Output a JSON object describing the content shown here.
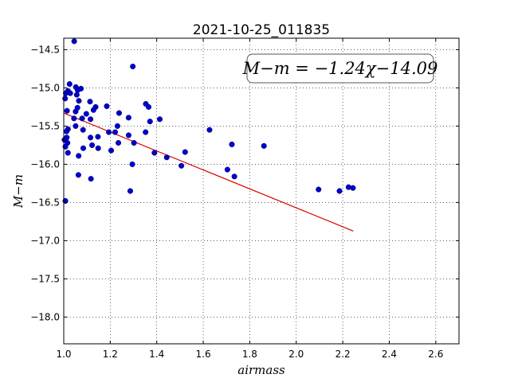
{
  "chart_data": {
    "type": "scatter",
    "title": "2021-10-25_011835",
    "xlabel": "airmass",
    "ylabel": "M−m",
    "xlim": [
      1.0,
      2.7
    ],
    "ylim": [
      -18.35,
      -14.35
    ],
    "x_ticks": [
      "1.0",
      "1.2",
      "1.4",
      "1.6",
      "1.8",
      "2.0",
      "2.2",
      "2.4",
      "2.6"
    ],
    "y_ticks": [
      "-14.5",
      "-15.0",
      "-15.5",
      "-16.0",
      "-16.5",
      "-17.0",
      "-17.5",
      "-18.0"
    ],
    "x_tick_values": [
      1.0,
      1.2,
      1.4,
      1.6,
      1.8,
      2.0,
      2.2,
      2.4,
      2.6
    ],
    "y_tick_values": [
      -14.5,
      -15.0,
      -15.5,
      -16.0,
      -16.5,
      -17.0,
      -17.5,
      -18.0
    ],
    "grid": true,
    "annotation": "M−m = −1.24χ−14.09",
    "point_color": "#0000cc",
    "fit_color": "#dd0000",
    "fit": {
      "slope": -1.24,
      "intercept": -14.09,
      "x_range": [
        1.0,
        2.245
      ]
    },
    "points": [
      [
        1.045,
        -14.39
      ],
      [
        1.297,
        -14.72
      ],
      [
        1.018,
        -15.04
      ],
      [
        1.009,
        -15.07
      ],
      [
        1.025,
        -14.95
      ],
      [
        1.028,
        -15.07
      ],
      [
        1.052,
        -14.99
      ],
      [
        1.06,
        -15.03
      ],
      [
        1.074,
        -15.01
      ],
      [
        1.056,
        -15.09
      ],
      [
        1.006,
        -15.14
      ],
      [
        1.065,
        -15.17
      ],
      [
        1.113,
        -15.18
      ],
      [
        1.059,
        -15.26
      ],
      [
        1.051,
        -15.31
      ],
      [
        1.137,
        -15.25
      ],
      [
        1.128,
        -15.29
      ],
      [
        1.014,
        -15.3
      ],
      [
        1.185,
        -15.24
      ],
      [
        1.353,
        -15.21
      ],
      [
        1.365,
        -15.25
      ],
      [
        1.097,
        -15.34
      ],
      [
        1.238,
        -15.33
      ],
      [
        1.079,
        -15.4
      ],
      [
        1.115,
        -15.41
      ],
      [
        1.044,
        -15.4
      ],
      [
        1.279,
        -15.39
      ],
      [
        1.413,
        -15.41
      ],
      [
        1.371,
        -15.44
      ],
      [
        1.231,
        -15.5
      ],
      [
        1.051,
        -15.5
      ],
      [
        1.018,
        -15.54
      ],
      [
        1.012,
        -15.57
      ],
      [
        1.083,
        -15.55
      ],
      [
        1.194,
        -15.58
      ],
      [
        1.221,
        -15.58
      ],
      [
        1.352,
        -15.58
      ],
      [
        1.627,
        -15.55
      ],
      [
        1.013,
        -15.65
      ],
      [
        1.003,
        -15.68
      ],
      [
        1.115,
        -15.65
      ],
      [
        1.147,
        -15.64
      ],
      [
        1.279,
        -15.62
      ],
      [
        1.016,
        -15.72
      ],
      [
        1.122,
        -15.75
      ],
      [
        1.235,
        -15.72
      ],
      [
        1.302,
        -15.72
      ],
      [
        1.723,
        -15.74
      ],
      [
        1.861,
        -15.76
      ],
      [
        1.007,
        -15.77
      ],
      [
        1.084,
        -15.79
      ],
      [
        1.148,
        -15.79
      ],
      [
        1.204,
        -15.82
      ],
      [
        1.018,
        -15.85
      ],
      [
        1.39,
        -15.85
      ],
      [
        1.522,
        -15.84
      ],
      [
        1.064,
        -15.89
      ],
      [
        1.443,
        -15.91
      ],
      [
        1.295,
        -16.0
      ],
      [
        1.506,
        -16.02
      ],
      [
        1.704,
        -16.07
      ],
      [
        1.063,
        -16.14
      ],
      [
        1.734,
        -16.16
      ],
      [
        1.117,
        -16.19
      ],
      [
        2.225,
        -16.3
      ],
      [
        2.244,
        -16.31
      ],
      [
        2.096,
        -16.33
      ],
      [
        2.186,
        -16.35
      ],
      [
        1.286,
        -16.35
      ],
      [
        1.007,
        -16.48
      ]
    ]
  }
}
